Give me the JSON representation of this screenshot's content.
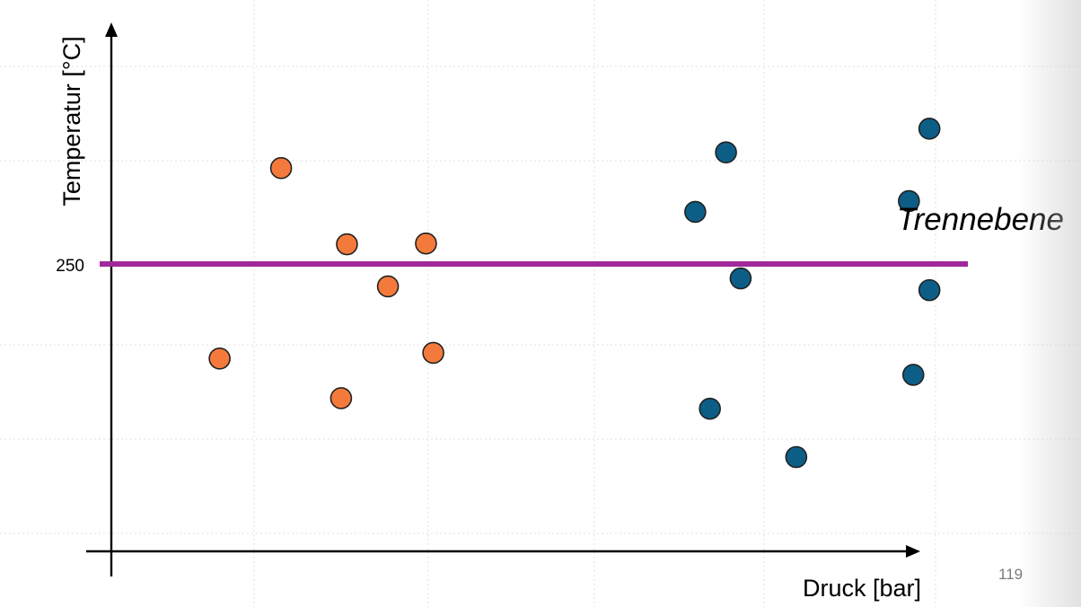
{
  "chart_data": {
    "type": "scatter",
    "title": "",
    "xlabel": "Druck [bar]",
    "ylabel": "Temperatur [°C]",
    "y_tick_labels": [
      "250"
    ],
    "grid": true,
    "series": [
      {
        "color": "#F47A3C",
        "points": [
          {
            "x": 1.16,
            "y": 300.6
          },
          {
            "x": 1.61,
            "y": 260.4
          },
          {
            "x": 1.89,
            "y": 238.2
          },
          {
            "x": 0.74,
            "y": 200.1
          },
          {
            "x": 2.15,
            "y": 260.8
          },
          {
            "x": 1.57,
            "y": 179.2
          },
          {
            "x": 2.2,
            "y": 203.1
          }
        ]
      },
      {
        "color": "#0D5E86",
        "points": [
          {
            "x": 4.2,
            "y": 308.9
          },
          {
            "x": 5.59,
            "y": 321.4
          },
          {
            "x": 5.45,
            "y": 283.2
          },
          {
            "x": 3.99,
            "y": 277.5
          },
          {
            "x": 4.3,
            "y": 242.4
          },
          {
            "x": 5.59,
            "y": 236.2
          },
          {
            "x": 5.48,
            "y": 191.5
          },
          {
            "x": 4.09,
            "y": 173.6
          },
          {
            "x": 4.68,
            "y": 148.1
          }
        ]
      }
    ],
    "separator": {
      "y": 250,
      "label": "Trennebene",
      "color": "#A0289A"
    },
    "annotations": [
      "Trennebene"
    ]
  },
  "page_number": "119"
}
